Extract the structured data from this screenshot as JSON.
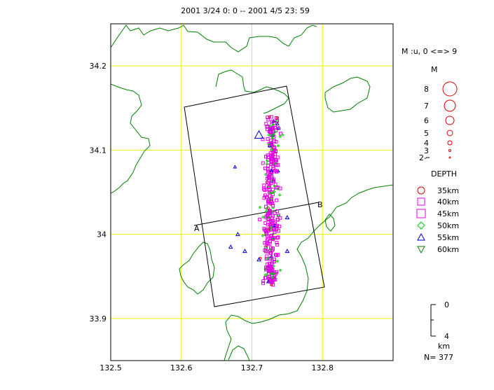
{
  "title": "2001 3/24  0: 0 --  2001 4/5  23: 59",
  "axes": {
    "x_ticks": [
      "132.5",
      "132.6",
      "132.7",
      "132.8"
    ],
    "x_values": [
      132.5,
      132.6,
      132.7,
      132.8
    ],
    "y_ticks": [
      "34.2",
      "34.1",
      "34",
      "33.9"
    ],
    "y_values": [
      34.2,
      34.1,
      34.0,
      33.9
    ],
    "xlim": [
      132.5,
      132.9
    ],
    "ylim": [
      33.85,
      34.25
    ],
    "grid": true,
    "grid_color": "#f0f000",
    "coast_color": "#008000"
  },
  "section_labels": {
    "a": "A",
    "b": "B"
  },
  "legend": {
    "mag_header": "M :u, 0 <=> 9",
    "mag_title": "M",
    "mag_labels": [
      "8",
      "7",
      "6",
      "5",
      "4",
      "3",
      "2-"
    ],
    "depth_title": "DEPTH",
    "depth_labels": [
      "35km",
      "40km",
      "45km",
      "50km",
      "55km",
      "60km"
    ],
    "depth_colors": [
      "#e00000",
      "#e000e0",
      "#e000e0",
      "#00d000",
      "#0000d0",
      "#008000"
    ],
    "depth_symbols": [
      "circle",
      "square",
      "square",
      "diamond",
      "triangle-up",
      "triangle-down"
    ]
  },
  "depth_scale": {
    "top": "0",
    "bottom": "4",
    "unit": "km"
  },
  "count": "N= 377",
  "events_drawn_sample": 377
}
